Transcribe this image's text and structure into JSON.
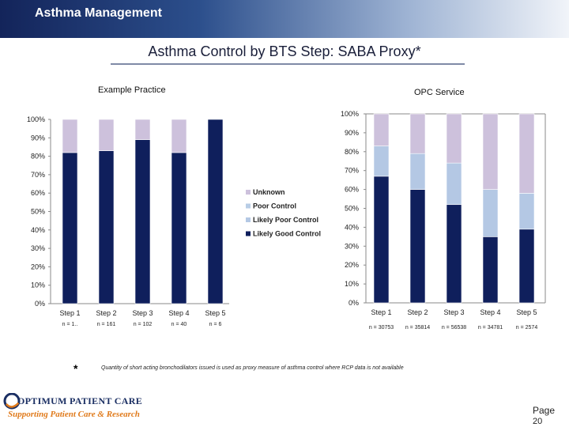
{
  "header": {
    "title": "Asthma Management"
  },
  "slide": {
    "title": "Asthma Control by BTS Step: SABA Proxy*"
  },
  "colors": {
    "likely_good": "#0f1f5c",
    "likely_poor": "#b4c8e4",
    "poor": "#b8cde6",
    "unknown": "#cdc1dc"
  },
  "chart_data": [
    {
      "type": "bar",
      "stacked": true,
      "title": "Example Practice",
      "categories": [
        "Step 1",
        "Step 2",
        "Step 3",
        "Step 4",
        "Step 5"
      ],
      "n_labels": [
        "n = 1..",
        "n = 161",
        "n = 102",
        "n = 40",
        "n = 6"
      ],
      "yticks": [
        "0%",
        "10%",
        "20%",
        "30%",
        "40%",
        "50%",
        "60%",
        "70%",
        "80%",
        "90%",
        "100%"
      ],
      "ylim": [
        0,
        100
      ],
      "series": [
        {
          "name": "Likely Good Control",
          "color": "#0f1f5c",
          "values": [
            82,
            83,
            89,
            82,
            100
          ]
        },
        {
          "name": "Likely Poor Control",
          "color": "#b4c8e4",
          "values": [
            0,
            0,
            0,
            0,
            0
          ]
        },
        {
          "name": "Poor Control",
          "color": "#b8cde6",
          "values": [
            0,
            0,
            0,
            0,
            0
          ]
        },
        {
          "name": "Unknown",
          "color": "#cdc1dc",
          "values": [
            18,
            17,
            11,
            18,
            0
          ]
        }
      ],
      "legend": [
        "Unknown",
        "Poor Control",
        "Likely Poor Control",
        "Likely Good Control"
      ],
      "legend_position": "right"
    },
    {
      "type": "bar",
      "stacked": true,
      "title": "OPC Service",
      "categories": [
        "Step 1",
        "Step 2",
        "Step 3",
        "Step 4",
        "Step 5"
      ],
      "n_labels": [
        "n = 30753",
        "n = 35814",
        "n = 56538",
        "n = 34781",
        "n = 2574"
      ],
      "yticks": [
        "0%",
        "10%",
        "20%",
        "30%",
        "40%",
        "50%",
        "60%",
        "70%",
        "80%",
        "90%",
        "100%"
      ],
      "ylim": [
        0,
        100
      ],
      "series": [
        {
          "name": "Likely Good Control",
          "color": "#0f1f5c",
          "values": [
            67,
            60,
            52,
            35,
            39
          ]
        },
        {
          "name": "Likely Poor Control",
          "color": "#b4c8e4",
          "values": [
            16,
            19,
            22,
            25,
            19
          ]
        },
        {
          "name": "Poor Control",
          "color": "#b8cde6",
          "values": [
            0,
            0,
            0,
            0,
            0
          ]
        },
        {
          "name": "Unknown",
          "color": "#cdc1dc",
          "values": [
            17,
            21,
            26,
            40,
            42
          ]
        }
      ]
    }
  ],
  "footnote": {
    "marker": "*",
    "text": "Quantity of short acting bronchodilators issued is used as proxy measure of asthma control where RCP data is not available"
  },
  "logo": {
    "line1": "OPTIMUM PATIENT CARE",
    "line2": "Supporting Patient Care & Research"
  },
  "page": {
    "label": "Page",
    "number": "20"
  }
}
